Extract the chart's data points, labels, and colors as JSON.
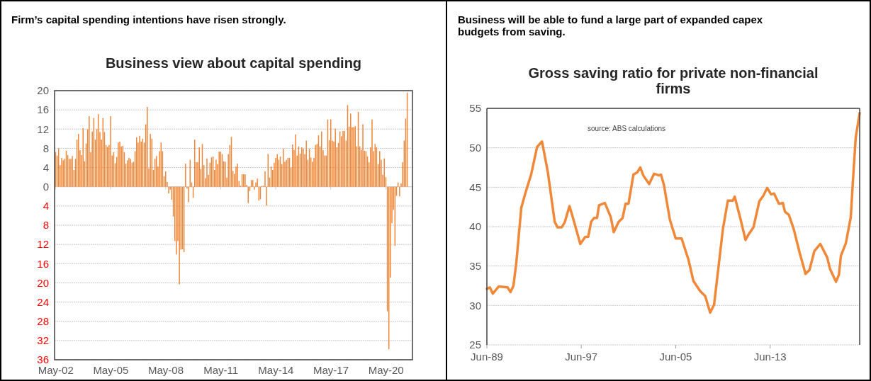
{
  "chart_data": [
    {
      "type": "bar",
      "title": "Firm’s capital spending intentions have risen strongly.",
      "subtitle": "Business view about capital spending",
      "categories": [
        "May-02",
        null,
        null,
        null,
        null,
        null,
        null,
        null,
        null,
        null,
        null,
        null,
        null,
        null,
        null,
        null,
        null,
        null,
        null,
        null,
        null,
        null,
        null,
        null,
        null,
        null,
        null,
        null,
        null,
        null,
        null,
        null,
        null,
        null,
        null,
        null,
        "May-05",
        null,
        null,
        null,
        null,
        null,
        null,
        null,
        null,
        null,
        null,
        null,
        null,
        null,
        null,
        null,
        null,
        null,
        null,
        null,
        null,
        null,
        null,
        null,
        null,
        null,
        null,
        null,
        null,
        null,
        null,
        null,
        null,
        null,
        null,
        null,
        "May-08",
        null,
        null,
        null,
        null,
        null,
        null,
        null,
        null,
        null,
        null,
        null,
        null,
        null,
        null,
        null,
        null,
        null,
        null,
        null,
        null,
        null,
        null,
        null,
        null,
        null,
        null,
        null,
        null,
        null,
        null,
        null,
        null,
        null,
        null,
        null,
        "May-11",
        null,
        null,
        null,
        null,
        null,
        null,
        null,
        null,
        null,
        null,
        null,
        null,
        null,
        null,
        null,
        null,
        null,
        null,
        null,
        null,
        null,
        null,
        null,
        null,
        null,
        null,
        null,
        null,
        null,
        null,
        null,
        null,
        null,
        null,
        null,
        "May-14",
        null,
        null,
        null,
        null,
        null,
        null,
        null,
        null,
        null,
        null,
        null,
        null,
        null,
        null,
        null,
        null,
        null,
        null,
        null,
        null,
        null,
        null,
        null,
        null,
        null,
        null,
        null,
        null,
        null,
        null,
        null,
        null,
        null,
        null,
        null,
        "May-17",
        null,
        null,
        null,
        null,
        null,
        null,
        null,
        null,
        null,
        null,
        null,
        null,
        null,
        null,
        null,
        null,
        null,
        null,
        null,
        null,
        null,
        null,
        null,
        null,
        null,
        null,
        null,
        null,
        null,
        null,
        null,
        null,
        null,
        null,
        null,
        "May-20",
        null,
        null,
        null,
        null,
        null,
        null,
        null,
        null,
        null,
        null,
        null,
        null,
        null,
        null
      ],
      "values": [
        7.2,
        6.5,
        8,
        4.5,
        6,
        5.5,
        5.8,
        7.5,
        6.6,
        5.8,
        5.8,
        6.4,
        3.5,
        5.8,
        9.8,
        11,
        7.6,
        6.6,
        12.2,
        5.3,
        9,
        12,
        14.7,
        7.2,
        11.5,
        14.3,
        9.8,
        12,
        15.1,
        11.4,
        9.8,
        14.3,
        11.4,
        8.7,
        8.3,
        8.7,
        14.7,
        6.5,
        7.2,
        4.9,
        6.2,
        9.2,
        9.4,
        8.4,
        8.5,
        7.2,
        4.8,
        5.5,
        6,
        5.8,
        5,
        5.2,
        7.4,
        10.3,
        9.2,
        10.6,
        9.4,
        10,
        9.2,
        13,
        16.6,
        3.8,
        11,
        10,
        3.5,
        5.8,
        6.4,
        4.2,
        7.4,
        9.2,
        7.4,
        2.2,
        3.2,
        1,
        -1.4,
        -0.6,
        -2.7,
        -6.2,
        -11.3,
        -14.1,
        -11.3,
        -20.3,
        -13.1,
        -13,
        -13.6,
        4.8,
        -0.4,
        -3.2,
        5.6,
        0.9,
        -2.3,
        9.8,
        5.1,
        5.1,
        8.2,
        3.7,
        8.9,
        4.5,
        1.8,
        5.9,
        2.5,
        5,
        6.1,
        6.3,
        3.5,
        5.6,
        4.7,
        7.3,
        7.3,
        6.8,
        5.3,
        5.2,
        1.9,
        6.8,
        8.7,
        10.4,
        3.3,
        2.7,
        4.2,
        4.8,
        1.2,
        0.2,
        2.6,
        2.6,
        2.6,
        0.4,
        -3.4,
        -0.9,
        1.4,
        1.4,
        -0.6,
        0.9,
        1.7,
        -2.9,
        -2.6,
        0.2,
        0.2,
        3.2,
        -3.9,
        6.8,
        1.9,
        4.2,
        3.5,
        5,
        6,
        6.8,
        5.6,
        6.3,
        4.7,
        7.9,
        5.2,
        5.6,
        6,
        6,
        4,
        8.8,
        7.7,
        10.9,
        6.5,
        8.4,
        6.9,
        8.2,
        7.9,
        6.8,
        9.6,
        5.6,
        7.9,
        6.1,
        5.2,
        6,
        8.7,
        8.9,
        10.7,
        8.4,
        11.5,
        7.6,
        6.5,
        6.5,
        14,
        9.7,
        14,
        9.6,
        9.4,
        12.1,
        8.2,
        9.1,
        11.5,
        10.5,
        11.6,
        11.6,
        9.6,
        17,
        12.5,
        15.2,
        12.4,
        12.4,
        12.6,
        8.4,
        15.6,
        8.4,
        7.7,
        13,
        7.5,
        7.4,
        6.3,
        5.1,
        8.2,
        14,
        7.4,
        8.9,
        8.2,
        4.7,
        7.4,
        5.6,
        2.5,
        5.9,
        2,
        -25.9,
        -33.8,
        -18.9,
        -7.6,
        -4.8,
        -12.3,
        -1.9,
        0.9,
        -2,
        0.7,
        5.1,
        9.6,
        14.2,
        19.6
      ],
      "color": "#f0883a",
      "ylim": [
        -36,
        20
      ],
      "yticks": [
        20,
        16,
        12,
        8,
        4,
        0,
        {
          "value": -4,
          "label": "4"
        },
        {
          "value": -8,
          "label": "8"
        },
        {
          "value": -12,
          "label": "12"
        },
        {
          "value": -16,
          "label": "16"
        },
        {
          "value": -20,
          "label": "20"
        },
        {
          "value": -24,
          "label": "24"
        },
        {
          "value": -28,
          "label": "28"
        },
        {
          "value": -32,
          "label": "32"
        },
        {
          "value": -36,
          "label": "36"
        }
      ],
      "grid": "y"
    },
    {
      "type": "line",
      "title": "Business will be able to fund a large part of expanded capex budgets from saving.",
      "subtitle": "Gross saving ratio for private non-financial firms",
      "x": [
        "1989-06",
        "1989-09",
        "1989-12",
        "1990-06",
        "1991-03",
        "1991-06",
        "1991-09",
        "1991-12",
        "1992-05",
        "1992-09",
        "1993-03",
        "1993-09",
        "1994-02",
        "1994-08",
        "1995-03",
        "1995-06",
        "1995-10",
        "1996-01",
        "1996-06",
        "1996-10",
        "1997-05",
        "1997-10",
        "1998-01",
        "1998-04",
        "1998-07",
        "1998-10",
        "1998-12",
        "1999-06",
        "1999-12",
        "2000-03",
        "2000-08",
        "2000-12",
        "2001-03",
        "2001-06",
        "2001-11",
        "2002-03",
        "2002-06",
        "2002-09",
        "2003-03",
        "2003-08",
        "2004-01",
        "2004-03",
        "2004-06",
        "2004-12",
        "2005-06",
        "2005-12",
        "2006-07",
        "2006-12",
        "2007-07",
        "2007-12",
        "2008-05",
        "2008-09",
        "2009-06",
        "2009-11",
        "2010-04",
        "2010-06",
        "2010-12",
        "2011-05",
        "2011-08",
        "2012-01",
        "2012-07",
        "2012-11",
        "2013-03",
        "2013-07",
        "2013-10",
        "2014-03",
        "2014-07",
        "2014-09",
        "2015-01",
        "2015-06",
        "2015-12",
        "2016-06",
        "2016-10",
        "2017-03",
        "2017-09",
        "2018-04",
        "2018-07",
        "2019-01",
        "2019-04",
        "2019-06",
        "2019-11",
        "2020-04",
        "2020-06",
        "2020-09",
        "2021-01"
      ],
      "values": [
        32.1,
        32.3,
        31.5,
        32.4,
        32.3,
        31.7,
        32.5,
        35.5,
        42.4,
        44.2,
        46.6,
        50.1,
        50.8,
        46.9,
        40.6,
        39.9,
        39.9,
        40.5,
        42.6,
        40.9,
        37.8,
        38.7,
        38.7,
        40.6,
        41.1,
        41.1,
        42.7,
        43,
        41.2,
        39.3,
        40.6,
        41.1,
        42.9,
        42.9,
        46.6,
        46.9,
        47.5,
        46.5,
        45.4,
        46.7,
        46.5,
        46.6,
        45.3,
        40.9,
        38.5,
        38.5,
        35.8,
        33.1,
        31.8,
        31.2,
        29.1,
        30.1,
        39.7,
        43.3,
        43.3,
        43.8,
        40.9,
        38.3,
        39,
        39.9,
        43.2,
        43.9,
        44.9,
        44.1,
        44.2,
        42.9,
        43,
        41.9,
        41.5,
        39.7,
        36.7,
        34,
        34.5,
        36.9,
        37.8,
        36.1,
        34.6,
        33,
        33.9,
        36.3,
        37.9,
        41.2,
        45.4,
        51.3,
        54.4
      ],
      "color": "#f0883a",
      "xlim": [
        "1989-06",
        "2021-01"
      ],
      "xticks": [
        {
          "value": "1989-06",
          "label": "Jun-89"
        },
        {
          "value": "1997-06",
          "label": "Jun-97"
        },
        {
          "value": "2005-06",
          "label": "Jun-05"
        },
        {
          "value": "2013-06",
          "label": "Jun-13"
        }
      ],
      "ylim": [
        25,
        55
      ],
      "yticks": [
        25,
        30,
        35,
        40,
        45,
        50,
        55
      ],
      "grid": "y",
      "annotations": [
        "source:  ABS calculations"
      ]
    }
  ]
}
